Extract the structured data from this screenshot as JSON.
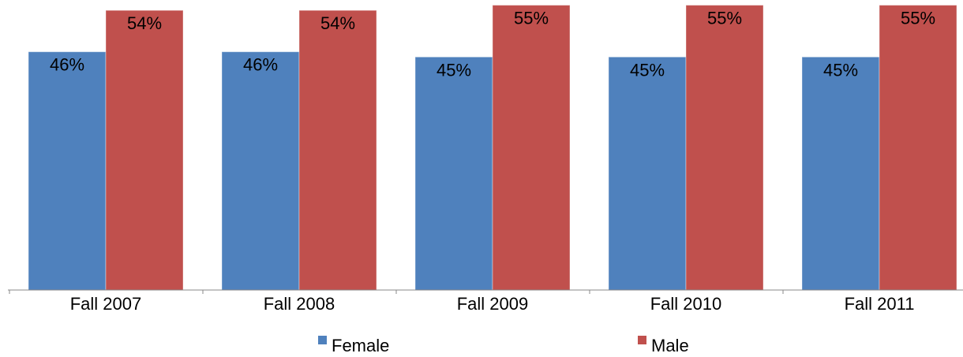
{
  "chart_data": {
    "type": "bar",
    "categories": [
      "Fall 2007",
      "Fall 2008",
      "Fall 2009",
      "Fall 2010",
      "Fall 2011"
    ],
    "series": [
      {
        "name": "Female",
        "color": "#4f81bd",
        "values": [
          46,
          46,
          45,
          45,
          45
        ],
        "value_labels": [
          "46%",
          "46%",
          "45%",
          "45%",
          "45%"
        ]
      },
      {
        "name": "Male",
        "color": "#c0504d",
        "values": [
          54,
          54,
          55,
          55,
          55
        ],
        "value_labels": [
          "54%",
          "54%",
          "55%",
          "55%",
          "55%"
        ]
      }
    ],
    "ylim": [
      0,
      56
    ],
    "legend": "bottom"
  }
}
